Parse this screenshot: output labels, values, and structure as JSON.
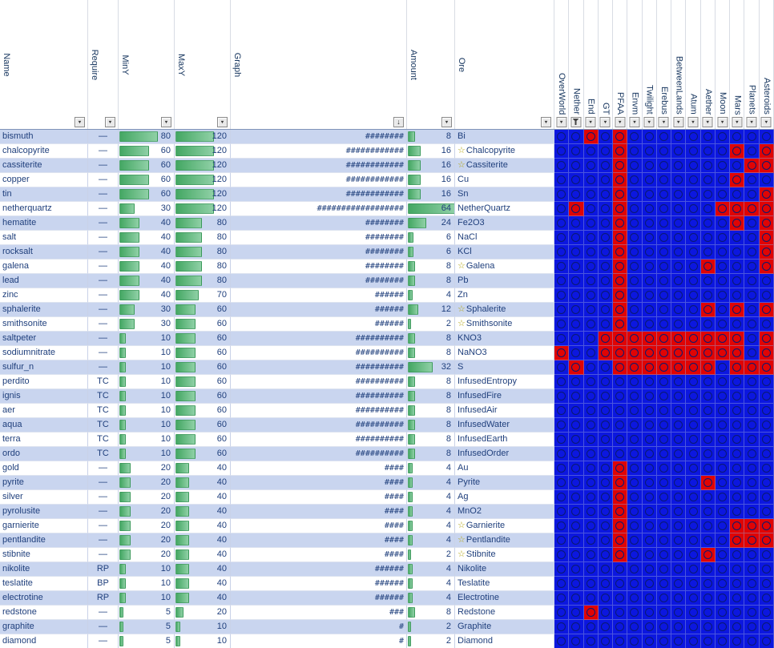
{
  "app": {
    "type": "spreadsheet-ore-generation-table"
  },
  "icons": {
    "star": "☆",
    "dropdown_arrow": "▼",
    "sort_descending": "↓",
    "cell_marker": "circle"
  },
  "colors": {
    "band_row": "#c9d5ef",
    "text": "#1f3f7c",
    "data_bar_green": "#44a763",
    "dim_enabled_red": "#e00404",
    "dim_disabled_blue": "#0c17df",
    "star_yellow": "#b3a40f"
  },
  "header": {
    "left_columns": [
      {
        "id": "name",
        "label": "Name",
        "filter": "dropdown"
      },
      {
        "id": "require",
        "label": "Require",
        "filter": "dropdown"
      },
      {
        "id": "miny",
        "label": "MinY",
        "filter": "dropdown"
      },
      {
        "id": "maxy",
        "label": "MaxY",
        "filter": "dropdown"
      },
      {
        "id": "graph",
        "label": "Graph",
        "filter": "sort-dropdown"
      },
      {
        "id": "amount",
        "label": "Amount",
        "filter": "dropdown"
      },
      {
        "id": "ore",
        "label": "Ore",
        "filter": "dropdown"
      }
    ],
    "dimension_columns": [
      {
        "id": "overworld",
        "label": "OverWorld",
        "filter": "dropdown"
      },
      {
        "id": "nether",
        "label": "Nether",
        "filter": "funnel"
      },
      {
        "id": "end",
        "label": "End",
        "filter": "dropdown"
      },
      {
        "id": "gt",
        "label": "GT",
        "filter": "dropdown"
      },
      {
        "id": "pfaa",
        "label": "PFAA",
        "filter": "dropdown"
      },
      {
        "id": "envm",
        "label": "Envm",
        "filter": "dropdown"
      },
      {
        "id": "twilight",
        "label": "Twilight",
        "filter": "dropdown"
      },
      {
        "id": "erebus",
        "label": "Erebus",
        "filter": "dropdown"
      },
      {
        "id": "betweenlands",
        "label": "BetweenLands",
        "filter": "dropdown"
      },
      {
        "id": "atum",
        "label": "Atum",
        "filter": "dropdown"
      },
      {
        "id": "aether",
        "label": "Aether",
        "filter": "dropdown"
      },
      {
        "id": "moon",
        "label": "Moon",
        "filter": "dropdown"
      },
      {
        "id": "mars",
        "label": "Mars",
        "filter": "dropdown"
      },
      {
        "id": "planets",
        "label": "Planets",
        "filter": "dropdown"
      },
      {
        "id": "asteroids",
        "label": "Asteroids",
        "filter": "dropdown"
      }
    ]
  },
  "scales": {
    "min_y_full": 120,
    "max_y_full": 180,
    "amount_full": 66
  },
  "rows": [
    {
      "name": "bismuth",
      "require": "—",
      "min_y": 80,
      "max_y": 120,
      "graph": "########",
      "amount": 8,
      "ore": "Bi",
      "ore_star": false,
      "dims": [
        0,
        0,
        1,
        0,
        1,
        0,
        0,
        0,
        0,
        0,
        0,
        0,
        0,
        0,
        0
      ]
    },
    {
      "name": "chalcopyrite",
      "require": "—",
      "min_y": 60,
      "max_y": 120,
      "graph": "############",
      "amount": 16,
      "ore": "Chalcopyrite",
      "ore_star": true,
      "dims": [
        0,
        0,
        0,
        0,
        1,
        0,
        0,
        0,
        0,
        0,
        0,
        0,
        1,
        0,
        1
      ]
    },
    {
      "name": "cassiterite",
      "require": "—",
      "min_y": 60,
      "max_y": 120,
      "graph": "############",
      "amount": 16,
      "ore": "Cassiterite",
      "ore_star": true,
      "dims": [
        0,
        0,
        0,
        0,
        1,
        0,
        0,
        0,
        0,
        0,
        0,
        0,
        0,
        1,
        1
      ]
    },
    {
      "name": "copper",
      "require": "—",
      "min_y": 60,
      "max_y": 120,
      "graph": "############",
      "amount": 16,
      "ore": "Cu",
      "ore_star": false,
      "dims": [
        0,
        0,
        0,
        0,
        1,
        0,
        0,
        0,
        0,
        0,
        0,
        0,
        1,
        0,
        0
      ]
    },
    {
      "name": "tin",
      "require": "—",
      "min_y": 60,
      "max_y": 120,
      "graph": "############",
      "amount": 16,
      "ore": "Sn",
      "ore_star": false,
      "dims": [
        0,
        0,
        0,
        0,
        1,
        0,
        0,
        0,
        0,
        0,
        0,
        0,
        0,
        0,
        1
      ]
    },
    {
      "name": "netherquartz",
      "require": "—",
      "min_y": 30,
      "max_y": 120,
      "graph": "##################",
      "amount": 64,
      "ore": "NetherQuartz",
      "ore_star": false,
      "dims": [
        0,
        1,
        0,
        0,
        1,
        0,
        0,
        0,
        0,
        0,
        0,
        1,
        1,
        1,
        1
      ]
    },
    {
      "name": "hematite",
      "require": "—",
      "min_y": 40,
      "max_y": 80,
      "graph": "########",
      "amount": 24,
      "ore": "Fe2O3",
      "ore_star": false,
      "dims": [
        0,
        0,
        0,
        0,
        1,
        0,
        0,
        0,
        0,
        0,
        0,
        0,
        1,
        0,
        1
      ]
    },
    {
      "name": "salt",
      "require": "—",
      "min_y": 40,
      "max_y": 80,
      "graph": "########",
      "amount": 6,
      "ore": "NaCl",
      "ore_star": false,
      "dims": [
        0,
        0,
        0,
        0,
        1,
        0,
        0,
        0,
        0,
        0,
        0,
        0,
        0,
        0,
        1
      ]
    },
    {
      "name": "rocksalt",
      "require": "—",
      "min_y": 40,
      "max_y": 80,
      "graph": "########",
      "amount": 6,
      "ore": "KCl",
      "ore_star": false,
      "dims": [
        0,
        0,
        0,
        0,
        1,
        0,
        0,
        0,
        0,
        0,
        0,
        0,
        0,
        0,
        1
      ]
    },
    {
      "name": "galena",
      "require": "—",
      "min_y": 40,
      "max_y": 80,
      "graph": "########",
      "amount": 8,
      "ore": "Galena",
      "ore_star": true,
      "dims": [
        0,
        0,
        0,
        0,
        1,
        0,
        0,
        0,
        0,
        0,
        1,
        0,
        0,
        0,
        1
      ]
    },
    {
      "name": "lead",
      "require": "—",
      "min_y": 40,
      "max_y": 80,
      "graph": "########",
      "amount": 8,
      "ore": "Pb",
      "ore_star": false,
      "dims": [
        0,
        0,
        0,
        0,
        1,
        0,
        0,
        0,
        0,
        0,
        0,
        0,
        0,
        0,
        0
      ]
    },
    {
      "name": "zinc",
      "require": "—",
      "min_y": 40,
      "max_y": 70,
      "graph": "######",
      "amount": 4,
      "ore": "Zn",
      "ore_star": false,
      "dims": [
        0,
        0,
        0,
        0,
        1,
        0,
        0,
        0,
        0,
        0,
        0,
        0,
        0,
        0,
        0
      ]
    },
    {
      "name": "sphalerite",
      "require": "—",
      "min_y": 30,
      "max_y": 60,
      "graph": "######",
      "amount": 12,
      "ore": "Sphalerite",
      "ore_star": true,
      "dims": [
        0,
        0,
        0,
        0,
        1,
        0,
        0,
        0,
        0,
        0,
        1,
        0,
        1,
        0,
        1
      ]
    },
    {
      "name": "smithsonite",
      "require": "—",
      "min_y": 30,
      "max_y": 60,
      "graph": "######",
      "amount": 2,
      "ore": "Smithsonite",
      "ore_star": true,
      "dims": [
        0,
        0,
        0,
        0,
        1,
        0,
        0,
        0,
        0,
        0,
        0,
        0,
        0,
        0,
        0
      ]
    },
    {
      "name": "saltpeter",
      "require": "—",
      "min_y": 10,
      "max_y": 60,
      "graph": "##########",
      "amount": 8,
      "ore": "KNO3",
      "ore_star": false,
      "dims": [
        0,
        0,
        0,
        1,
        1,
        1,
        1,
        1,
        1,
        1,
        1,
        1,
        1,
        0,
        1
      ]
    },
    {
      "name": "sodiumnitrate",
      "require": "—",
      "min_y": 10,
      "max_y": 60,
      "graph": "##########",
      "amount": 8,
      "ore": "NaNO3",
      "ore_star": false,
      "dims": [
        1,
        0,
        0,
        1,
        1,
        1,
        1,
        1,
        1,
        1,
        1,
        1,
        1,
        0,
        1
      ]
    },
    {
      "name": "sulfur_n",
      "require": "—",
      "min_y": 10,
      "max_y": 60,
      "graph": "##########",
      "amount": 32,
      "ore": "S",
      "ore_star": false,
      "dims": [
        0,
        1,
        0,
        0,
        1,
        1,
        1,
        1,
        1,
        1,
        1,
        0,
        1,
        1,
        1
      ]
    },
    {
      "name": "perdito",
      "require": "TC",
      "min_y": 10,
      "max_y": 60,
      "graph": "##########",
      "amount": 8,
      "ore": "InfusedEntropy",
      "ore_star": false,
      "dims": [
        0,
        0,
        0,
        0,
        0,
        0,
        0,
        0,
        0,
        0,
        0,
        0,
        0,
        0,
        0
      ]
    },
    {
      "name": "ignis",
      "require": "TC",
      "min_y": 10,
      "max_y": 60,
      "graph": "##########",
      "amount": 8,
      "ore": "InfusedFire",
      "ore_star": false,
      "dims": [
        0,
        0,
        0,
        0,
        0,
        0,
        0,
        0,
        0,
        0,
        0,
        0,
        0,
        0,
        0
      ]
    },
    {
      "name": "aer",
      "require": "TC",
      "min_y": 10,
      "max_y": 60,
      "graph": "##########",
      "amount": 8,
      "ore": "InfusedAir",
      "ore_star": false,
      "dims": [
        0,
        0,
        0,
        0,
        0,
        0,
        0,
        0,
        0,
        0,
        0,
        0,
        0,
        0,
        0
      ]
    },
    {
      "name": "aqua",
      "require": "TC",
      "min_y": 10,
      "max_y": 60,
      "graph": "##########",
      "amount": 8,
      "ore": "InfusedWater",
      "ore_star": false,
      "dims": [
        0,
        0,
        0,
        0,
        0,
        0,
        0,
        0,
        0,
        0,
        0,
        0,
        0,
        0,
        0
      ]
    },
    {
      "name": "terra",
      "require": "TC",
      "min_y": 10,
      "max_y": 60,
      "graph": "##########",
      "amount": 8,
      "ore": "InfusedEarth",
      "ore_star": false,
      "dims": [
        0,
        0,
        0,
        0,
        0,
        0,
        0,
        0,
        0,
        0,
        0,
        0,
        0,
        0,
        0
      ]
    },
    {
      "name": "ordo",
      "require": "TC",
      "min_y": 10,
      "max_y": 60,
      "graph": "##########",
      "amount": 8,
      "ore": "InfusedOrder",
      "ore_star": false,
      "dims": [
        0,
        0,
        0,
        0,
        0,
        0,
        0,
        0,
        0,
        0,
        0,
        0,
        0,
        0,
        0
      ]
    },
    {
      "name": "gold",
      "require": "—",
      "min_y": 20,
      "max_y": 40,
      "graph": "####",
      "amount": 4,
      "ore": "Au",
      "ore_star": false,
      "dims": [
        0,
        0,
        0,
        0,
        1,
        0,
        0,
        0,
        0,
        0,
        0,
        0,
        0,
        0,
        0
      ]
    },
    {
      "name": "pyrite",
      "require": "—",
      "min_y": 20,
      "max_y": 40,
      "graph": "####",
      "amount": 4,
      "ore": "Pyrite",
      "ore_star": false,
      "dims": [
        0,
        0,
        0,
        0,
        1,
        0,
        0,
        0,
        0,
        0,
        1,
        0,
        0,
        0,
        0
      ]
    },
    {
      "name": "silver",
      "require": "—",
      "min_y": 20,
      "max_y": 40,
      "graph": "####",
      "amount": 4,
      "ore": "Ag",
      "ore_star": false,
      "dims": [
        0,
        0,
        0,
        0,
        1,
        0,
        0,
        0,
        0,
        0,
        0,
        0,
        0,
        0,
        0
      ]
    },
    {
      "name": "pyrolusite",
      "require": "—",
      "min_y": 20,
      "max_y": 40,
      "graph": "####",
      "amount": 4,
      "ore": "MnO2",
      "ore_star": false,
      "dims": [
        0,
        0,
        0,
        0,
        1,
        0,
        0,
        0,
        0,
        0,
        0,
        0,
        0,
        0,
        0
      ]
    },
    {
      "name": "garnierite",
      "require": "—",
      "min_y": 20,
      "max_y": 40,
      "graph": "####",
      "amount": 4,
      "ore": "Garnierite",
      "ore_star": true,
      "dims": [
        0,
        0,
        0,
        0,
        1,
        0,
        0,
        0,
        0,
        0,
        0,
        0,
        1,
        1,
        1
      ]
    },
    {
      "name": "pentlandite",
      "require": "—",
      "min_y": 20,
      "max_y": 40,
      "graph": "####",
      "amount": 4,
      "ore": "Pentlandite",
      "ore_star": true,
      "dims": [
        0,
        0,
        0,
        0,
        1,
        0,
        0,
        0,
        0,
        0,
        0,
        0,
        1,
        1,
        1
      ]
    },
    {
      "name": "stibnite",
      "require": "—",
      "min_y": 20,
      "max_y": 40,
      "graph": "####",
      "amount": 2,
      "ore": "Stibnite",
      "ore_star": true,
      "dims": [
        0,
        0,
        0,
        0,
        1,
        0,
        0,
        0,
        0,
        0,
        1,
        0,
        0,
        0,
        0
      ]
    },
    {
      "name": "nikolite",
      "require": "RP",
      "min_y": 10,
      "max_y": 40,
      "graph": "######",
      "amount": 4,
      "ore": "Nikolite",
      "ore_star": false,
      "dims": [
        0,
        0,
        0,
        0,
        0,
        0,
        0,
        0,
        0,
        0,
        0,
        0,
        0,
        0,
        0
      ]
    },
    {
      "name": "teslatite",
      "require": "BP",
      "min_y": 10,
      "max_y": 40,
      "graph": "######",
      "amount": 4,
      "ore": "Teslatite",
      "ore_star": false,
      "dims": [
        0,
        0,
        0,
        0,
        0,
        0,
        0,
        0,
        0,
        0,
        0,
        0,
        0,
        0,
        0
      ]
    },
    {
      "name": "electrotine",
      "require": "RP",
      "min_y": 10,
      "max_y": 40,
      "graph": "######",
      "amount": 4,
      "ore": "Electrotine",
      "ore_star": false,
      "dims": [
        0,
        0,
        0,
        0,
        0,
        0,
        0,
        0,
        0,
        0,
        0,
        0,
        0,
        0,
        0
      ]
    },
    {
      "name": "redstone",
      "require": "—",
      "min_y": 5,
      "max_y": 20,
      "graph": "###",
      "amount": 8,
      "ore": "Redstone",
      "ore_star": false,
      "dims": [
        0,
        0,
        1,
        0,
        0,
        0,
        0,
        0,
        0,
        0,
        0,
        0,
        0,
        0,
        0
      ]
    },
    {
      "name": "graphite",
      "require": "—",
      "min_y": 5,
      "max_y": 10,
      "graph": "#",
      "amount": 2,
      "ore": "Graphite",
      "ore_star": false,
      "dims": [
        0,
        0,
        0,
        0,
        0,
        0,
        0,
        0,
        0,
        0,
        0,
        0,
        0,
        0,
        0
      ]
    },
    {
      "name": "diamond",
      "require": "—",
      "min_y": 5,
      "max_y": 10,
      "graph": "#",
      "amount": 2,
      "ore": "Diamond",
      "ore_star": false,
      "dims": [
        0,
        0,
        0,
        0,
        0,
        0,
        0,
        0,
        0,
        0,
        0,
        0,
        0,
        0,
        0
      ]
    }
  ]
}
